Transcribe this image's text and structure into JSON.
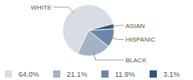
{
  "chart_data": {
    "type": "pie",
    "categories": [
      "WHITE",
      "BLACK",
      "HISPANIC",
      "ASIAN"
    ],
    "values": [
      64.0,
      21.1,
      11.9,
      3.1
    ],
    "value_labels": [
      "64.0%",
      "21.1%",
      "11.9%",
      "3.1%"
    ],
    "colors": [
      "#d8dce5",
      "#a3b2c6",
      "#6b88a8",
      "#2f5579"
    ]
  }
}
